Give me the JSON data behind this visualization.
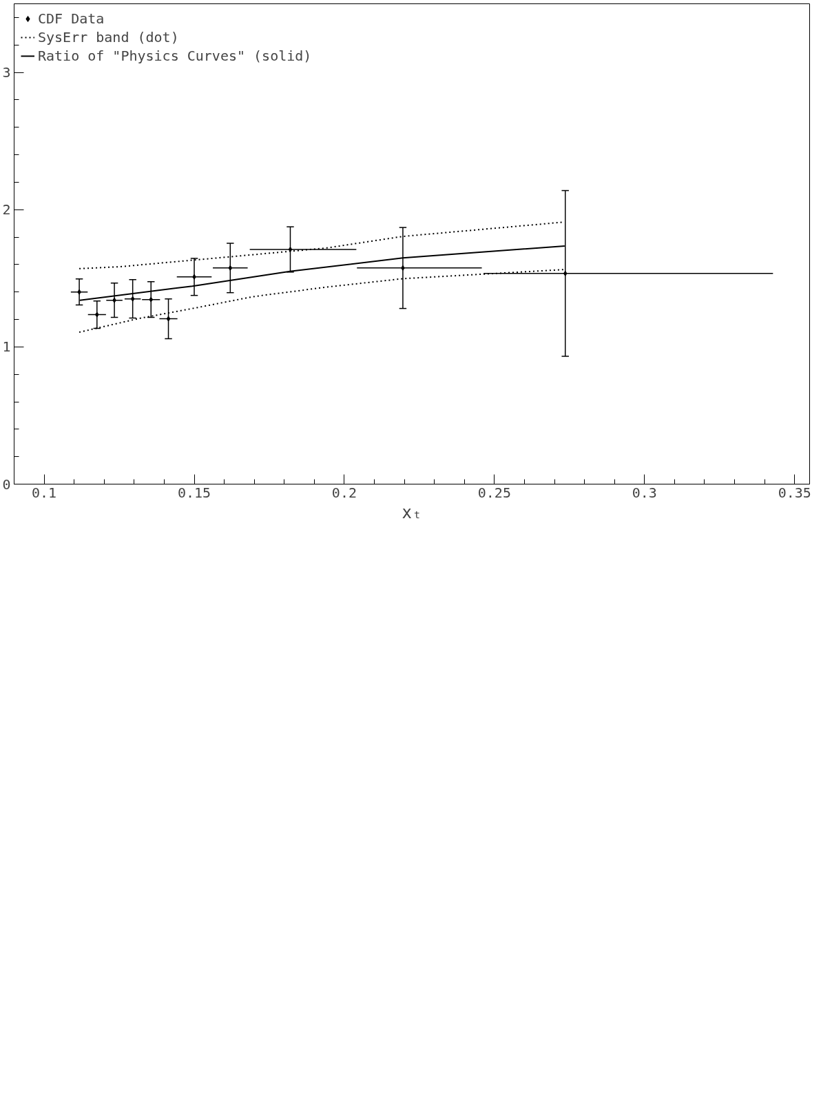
{
  "chart_data": {
    "type": "scatter",
    "xlabel": "xₜ",
    "xlim": [
      0.09,
      0.355
    ],
    "xticks": [
      0.1,
      0.15,
      0.2,
      0.25,
      0.3,
      0.35
    ],
    "ylim": [
      0,
      3.5
    ],
    "yticks": [
      0,
      1,
      2,
      3
    ],
    "grid": false,
    "legend": "top left",
    "series": [
      {
        "name": "CDF Data",
        "marker": "diamond",
        "color": "#000000",
        "x": [
          0.1117,
          0.1176,
          0.1234,
          0.1295,
          0.1356,
          0.1414,
          0.15,
          0.162,
          0.182,
          0.2195,
          0.2736
        ],
        "values": [
          1.4,
          1.235,
          1.34,
          1.35,
          1.345,
          1.205,
          1.51,
          1.575,
          1.71,
          1.575,
          1.535
        ],
        "errors": [
          0.095,
          0.1,
          0.125,
          0.14,
          0.13,
          0.145,
          0.135,
          0.18,
          0.165,
          0.295,
          0.604
        ],
        "xerrors": [
          0.0028,
          0.003,
          0.0027,
          0.0027,
          0.003,
          0.003,
          0.0058,
          0.0058,
          [
            0.1685,
            0.204
          ],
          [
            0.2042,
            0.2458
          ],
          [
            0.2464,
            0.3428
          ]
        ]
      },
      {
        "name": "SysErr band (dot)",
        "type": "line",
        "line_style": "dotted",
        "color": "#000000",
        "x": [
          0.1117,
          0.1318,
          0.1507,
          0.1696,
          0.1942,
          0.2195,
          0.2736
        ],
        "values": [
          1.107,
          1.208,
          1.285,
          1.366,
          1.436,
          1.497,
          1.564
        ]
      },
      {
        "type": "line",
        "line_style": "dotted",
        "color": "#000000",
        "x": [
          0.1117,
          0.1253,
          0.1418,
          0.1607,
          0.1942,
          0.2195,
          0.273
        ],
        "values": [
          1.57,
          1.584,
          1.617,
          1.654,
          1.721,
          1.805,
          1.909
        ]
      },
      {
        "name": "Ratio of \"Physics Curves\" (solid)",
        "type": "line",
        "line_style": "solid",
        "color": "#000000",
        "x": [
          0.1119,
          0.1494,
          0.1819,
          0.2195,
          0.2734
        ],
        "values": [
          1.339,
          1.443,
          1.55,
          1.648,
          1.735
        ]
      }
    ]
  }
}
